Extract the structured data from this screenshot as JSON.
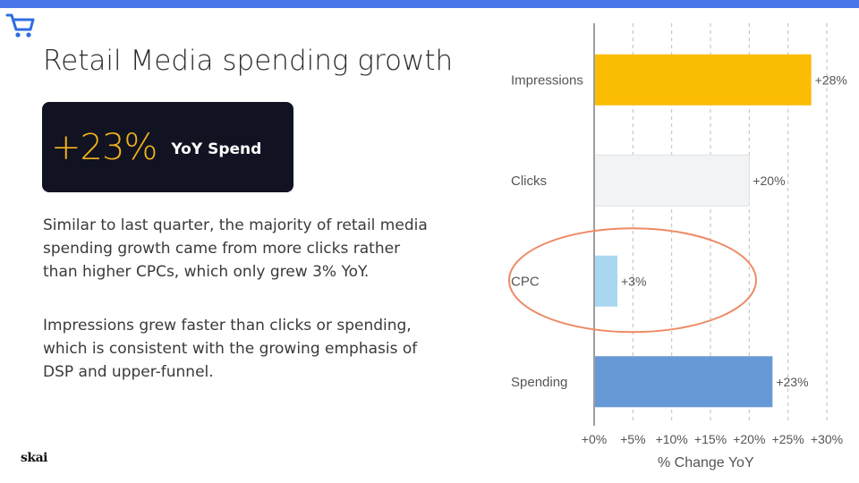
{
  "slide": {
    "title": "Retail Media spending growth",
    "kpi": {
      "value": "+23%",
      "label": "YoY Spend"
    },
    "paragraphs": [
      "Similar to last quarter, the majority of retail media spending growth came from more clicks rather than higher CPCs, which only grew 3% YoY.",
      "Impressions grew faster than clicks or spending, which is consistent with the growing emphasis of DSP and upper-funnel."
    ],
    "logo": "skai",
    "icon": "shopping-cart-icon"
  },
  "colors": {
    "top_bar": "#4a77e8",
    "kpi_background": "#111322",
    "kpi_value": "#f2b21a",
    "highlight_ellipse": "#ee8a66"
  },
  "chart_data": {
    "type": "bar",
    "orientation": "horizontal",
    "categories": [
      "Impressions",
      "Clicks",
      "CPC",
      "Spending"
    ],
    "values": [
      28,
      20,
      3,
      23
    ],
    "data_labels": [
      "+28%",
      "+20%",
      "+3%",
      "+23%"
    ],
    "bar_colors": [
      "#fbbc04",
      "#f1f3f4",
      "#a8d8f0",
      "#6699d6"
    ],
    "xlabel": "% Change YoY",
    "xticks": [
      0,
      5,
      10,
      15,
      20,
      25,
      30
    ],
    "xtick_labels": [
      "+0%",
      "+5%",
      "+10%",
      "+15%",
      "+20%",
      "+25%",
      "+30%"
    ],
    "xlim": [
      0,
      30
    ],
    "grid": "vertical dashed",
    "highlighted_category": "CPC"
  }
}
